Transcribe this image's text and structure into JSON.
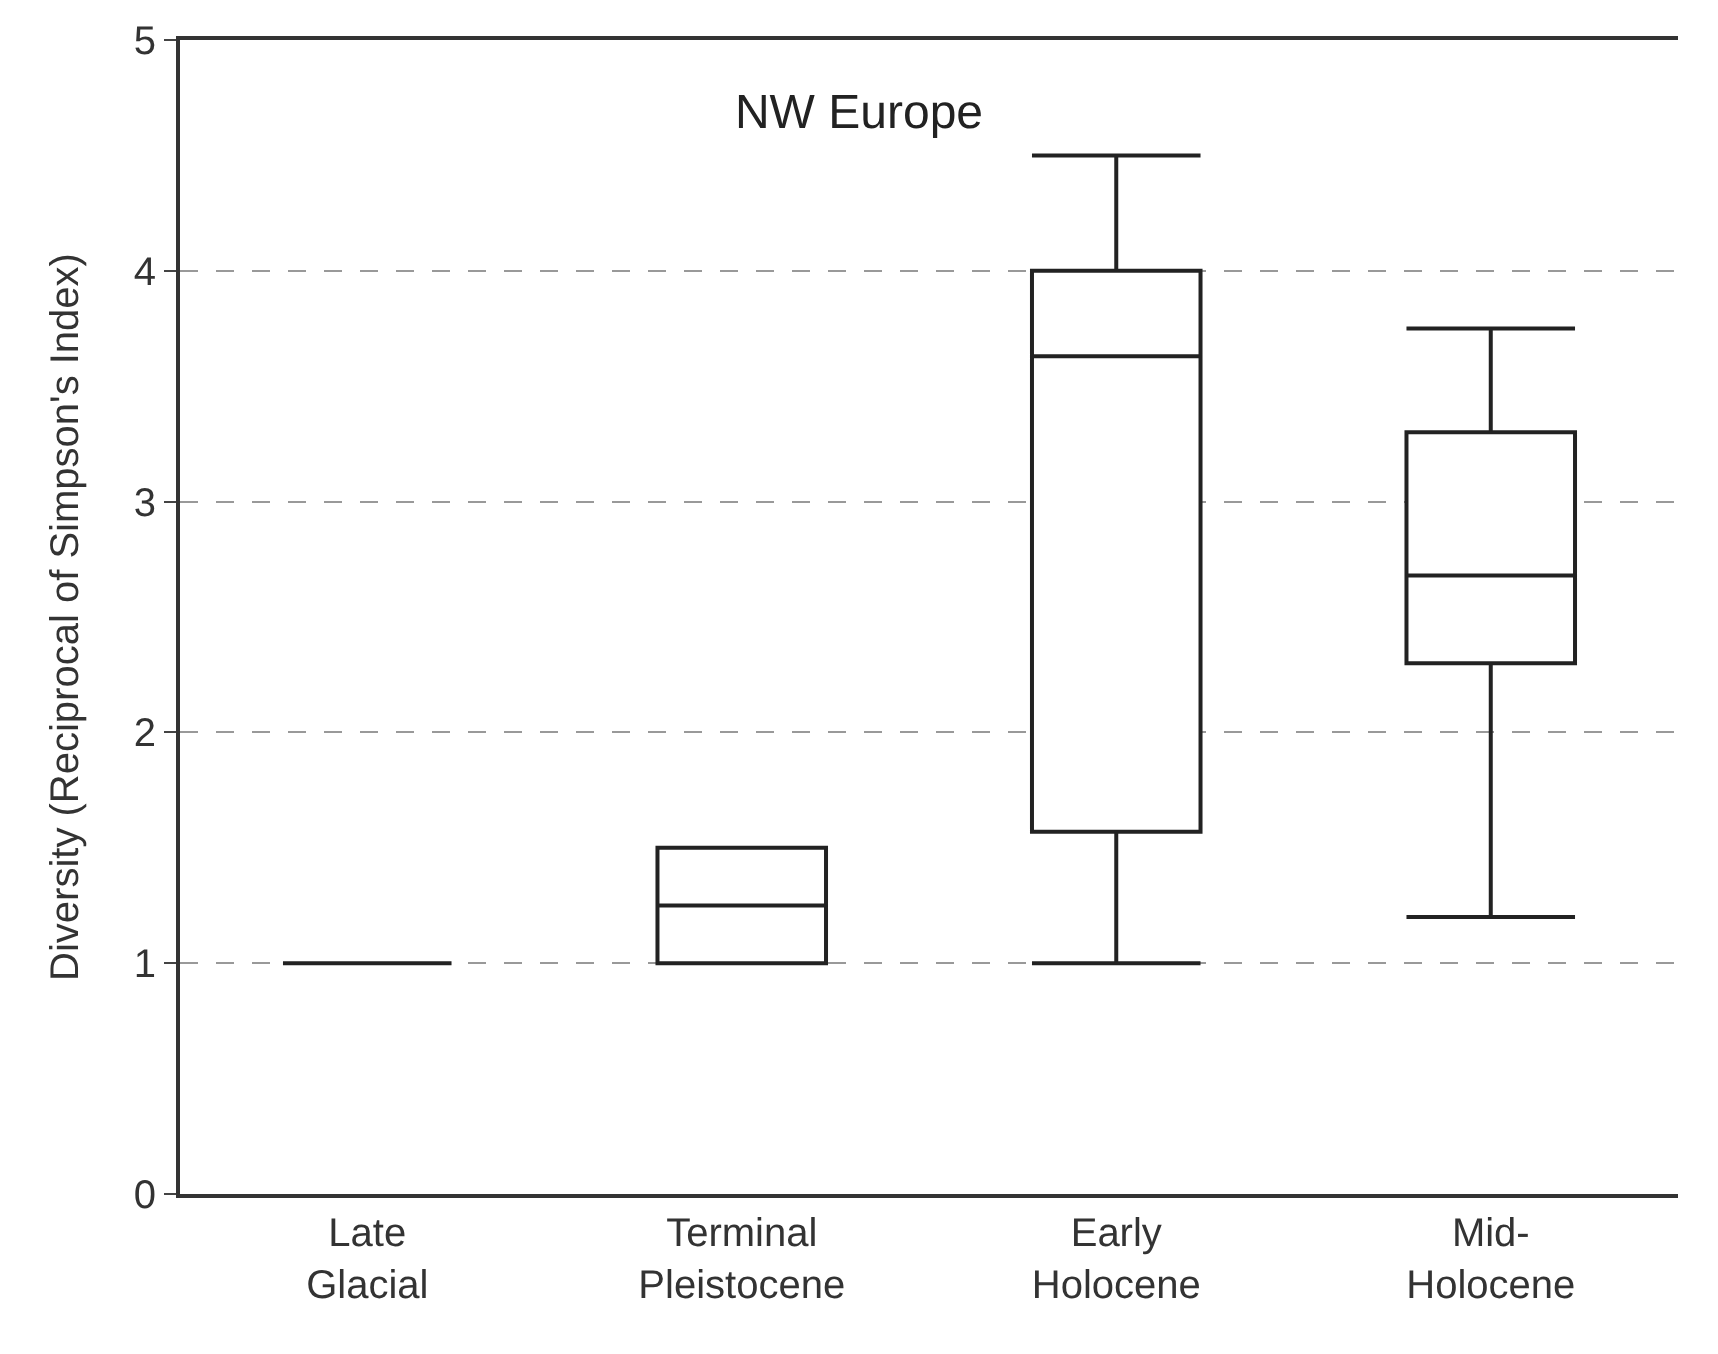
{
  "chart_data": {
    "type": "box",
    "title": "NW Europe",
    "ylabel": "Diversity (Reciprocal of Simpson's Index)",
    "categories": [
      "Late\nGlacial",
      "Terminal\nPleistocene",
      "Early\nHolocene",
      "Mid-\nHolocene"
    ],
    "boxes": [
      {
        "low": 1,
        "q1": 1,
        "median": 1,
        "q3": 1,
        "high": 1
      },
      {
        "low": 1,
        "q1": 1,
        "median": 1.25,
        "q3": 1.5,
        "high": 1.5
      },
      {
        "low": 1,
        "q1": 1.57,
        "median": 3.63,
        "q3": 4,
        "high": 4.5
      },
      {
        "low": 1.2,
        "q1": 2.3,
        "median": 2.68,
        "q3": 3.3,
        "high": 3.75
      }
    ],
    "color": "#222222",
    "ylim": [
      0,
      5
    ],
    "yticks": [
      0,
      1,
      2,
      3,
      4,
      5
    ],
    "grid": "y",
    "legend": false
  }
}
